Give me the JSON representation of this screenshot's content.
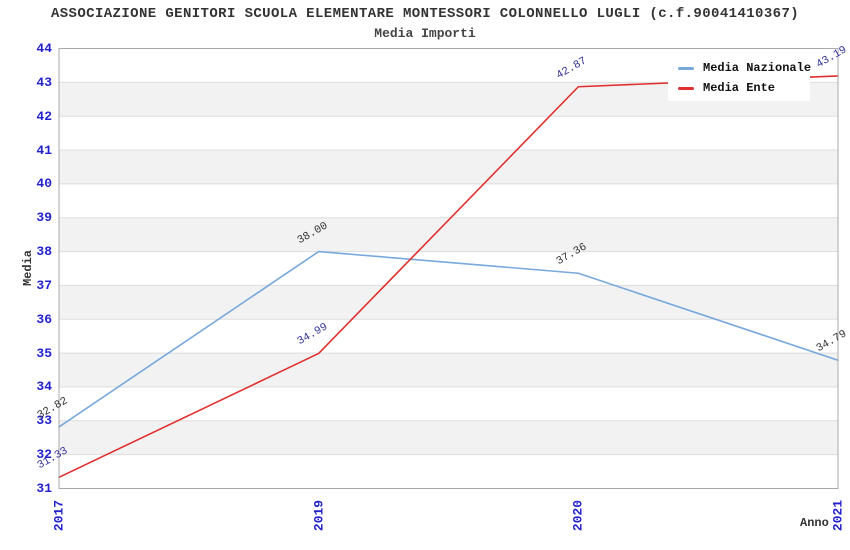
{
  "title": "ASSOCIAZIONE GENITORI SCUOLA ELEMENTARE MONTESSORI COLONNELLO LUGLI (c.f.90041410367)",
  "subtitle": "Media Importi",
  "chart_data": {
    "type": "line",
    "categories": [
      "2017",
      "2019",
      "2020",
      "2021"
    ],
    "series": [
      {
        "name": "Media Nazionale",
        "values": [
          32.82,
          38.0,
          37.36,
          34.79
        ],
        "point_labels": [
          "32.82",
          "38.00",
          "37.36",
          "34.79"
        ],
        "color": "#79A8DB",
        "point_label_color": "#333333"
      },
      {
        "name": "Media Ente",
        "values": [
          31.33,
          34.99,
          42.87,
          43.19
        ],
        "point_labels": [
          "31.33",
          "34.99",
          "42.87",
          "43.19"
        ],
        "color": "#E03030",
        "point_label_color": "#333399"
      }
    ],
    "xlabel": "Anno",
    "ylabel": "Media",
    "ylim": [
      31,
      44
    ],
    "yticks": [
      31,
      32,
      33,
      34,
      35,
      36,
      37,
      38,
      39,
      40,
      41,
      42,
      43,
      44
    ],
    "grid": "horizontal gridlines with alternating shaded bands",
    "legend_position": "top-right"
  },
  "colors": {
    "tick_label": "#2222CC",
    "axis_text": "#333333",
    "band": "#F2F2F2",
    "grid": "#DDDDDD",
    "plot_border": "#AAAAAA",
    "background": "#FFFFFF",
    "legend_background": "#FFFFFF"
  }
}
